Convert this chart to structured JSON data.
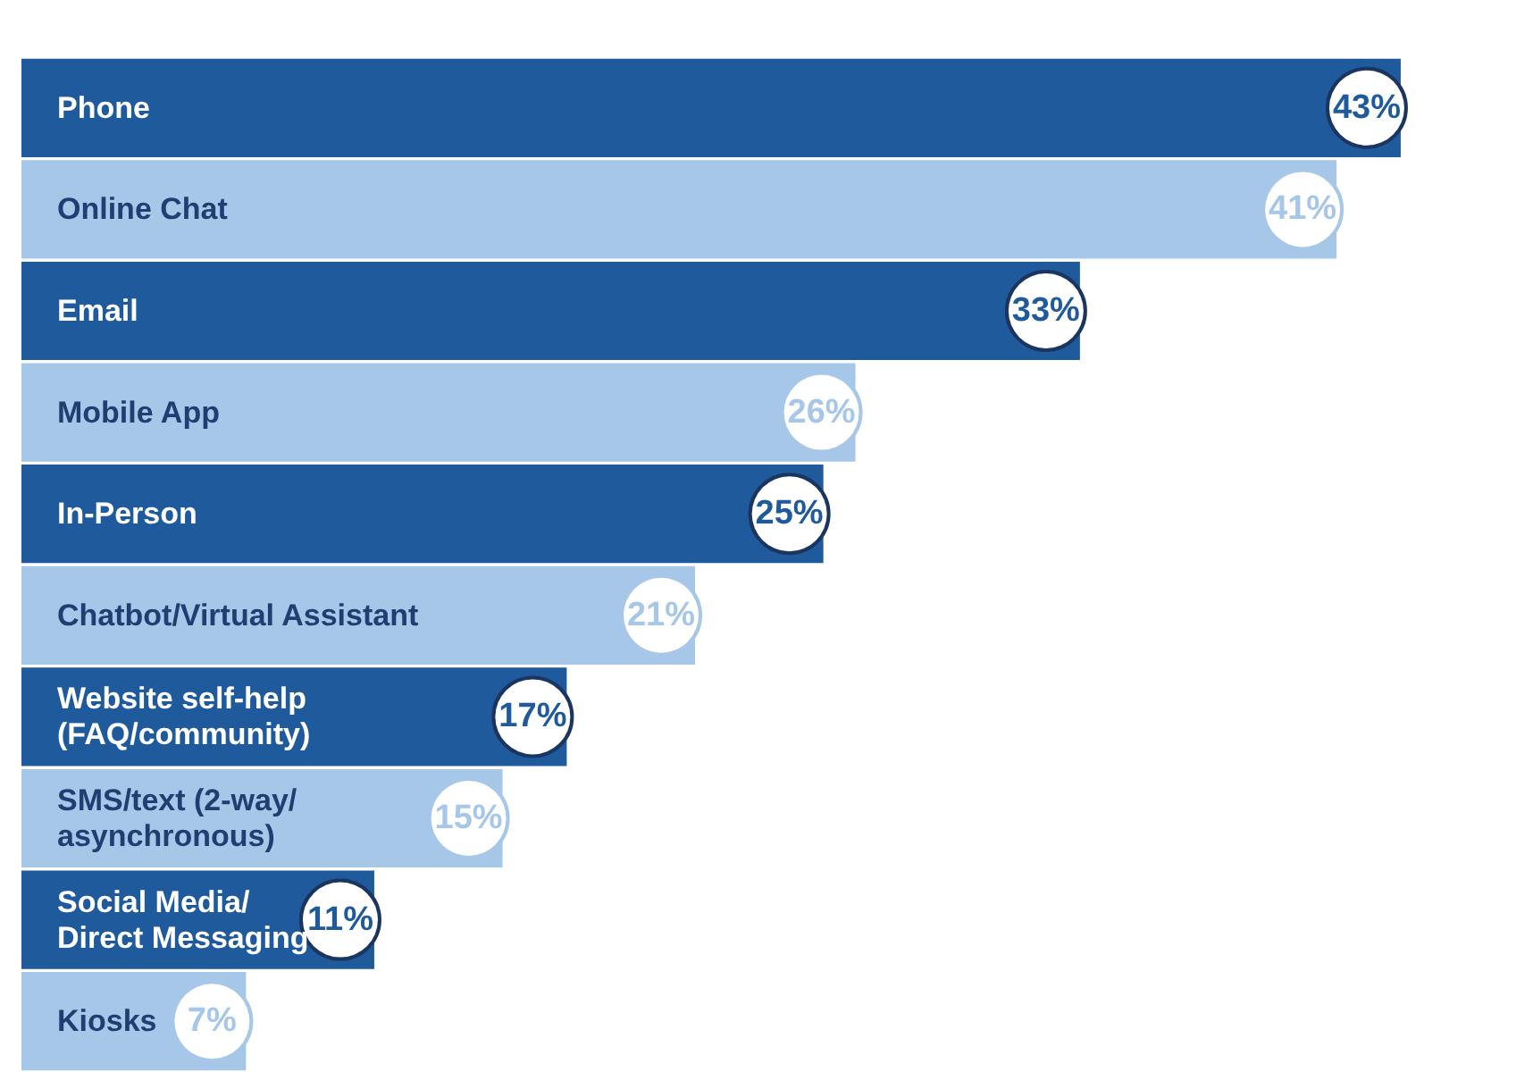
{
  "chart_data": {
    "type": "bar",
    "orientation": "horizontal",
    "categories": [
      "Phone",
      "Online Chat",
      "Email",
      "Mobile App",
      "In-Person",
      "Chatbot/Virtual Assistant",
      "Website self-help\n(FAQ/community)",
      "SMS/text (2-way/\nasynchronous)",
      "Social Media/\nDirect Messaging",
      "Kiosks"
    ],
    "values": [
      43,
      41,
      33,
      26,
      25,
      21,
      17,
      15,
      11,
      7
    ],
    "colors": [
      "#1f5b9c",
      "#a6c7e8",
      "#1f5b9c",
      "#a6c7e8",
      "#1f5b9c",
      "#a6c7e8",
      "#1f5b9c",
      "#a6c7e8",
      "#1f5b9c",
      "#a6c7e8"
    ],
    "value_labels": [
      "43%",
      "41%",
      "33%",
      "26%",
      "25%",
      "21%",
      "17%",
      "15%",
      "11%",
      "7%"
    ],
    "tick_labels": "y"
  }
}
